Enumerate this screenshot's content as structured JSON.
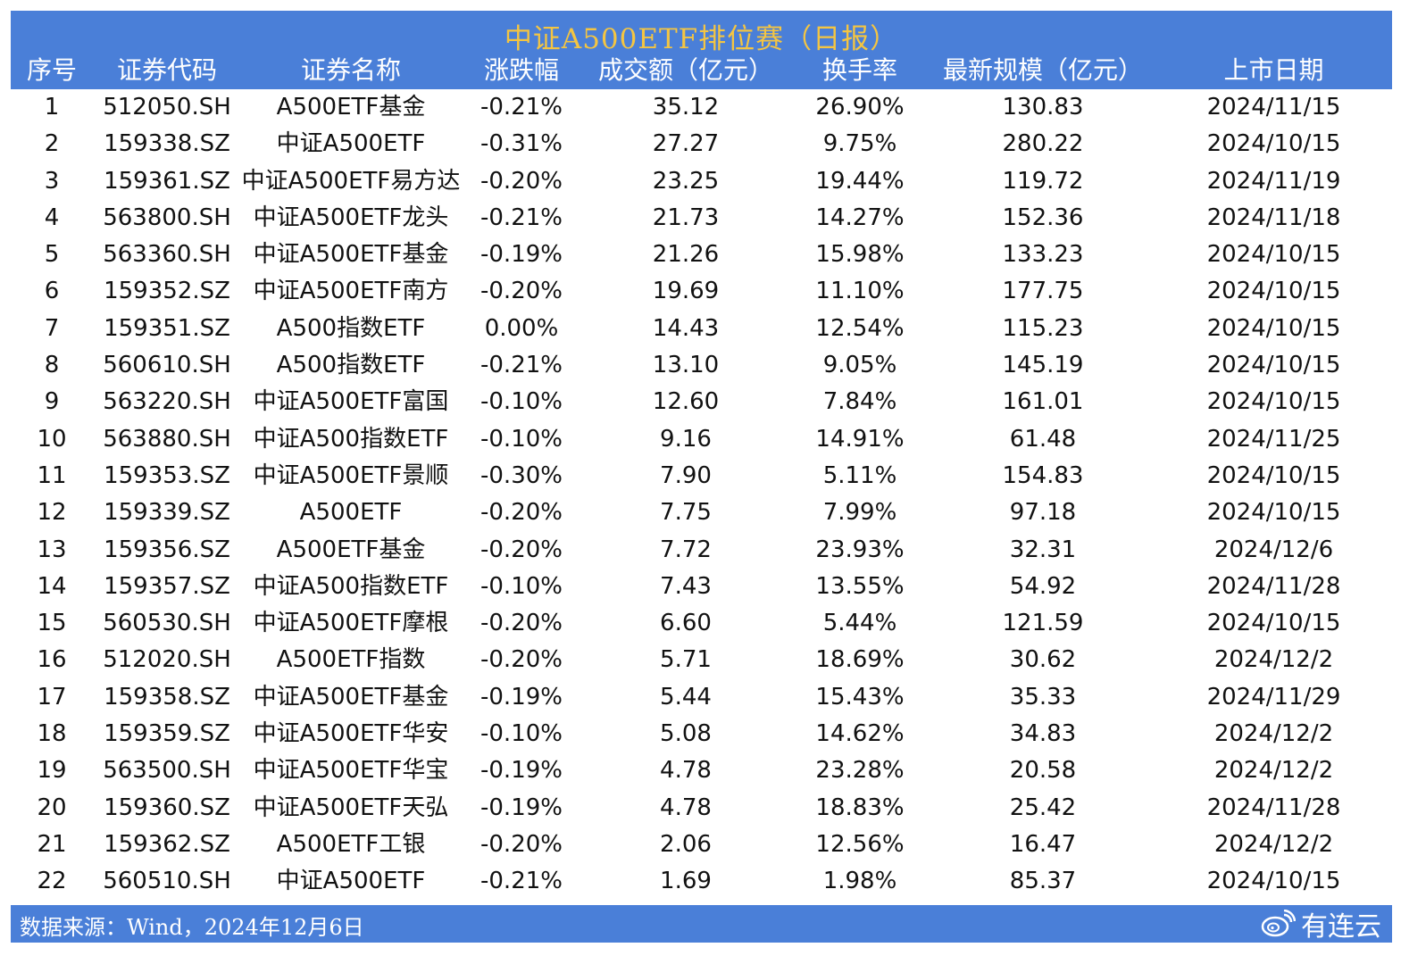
{
  "title": "中证A500ETF排位赛（日报）",
  "columns": [
    "序号",
    "证券代码",
    "证券名称",
    "涨跌幅",
    "成交额（亿元）",
    "换手率",
    "最新规模（亿元）",
    "上市日期"
  ],
  "rows": [
    [
      "1",
      "512050.SH",
      "A500ETF基金",
      "-0.21%",
      "35.12",
      "26.90%",
      "130.83",
      "2024/11/15"
    ],
    [
      "2",
      "159338.SZ",
      "中证A500ETF",
      "-0.31%",
      "27.27",
      "9.75%",
      "280.22",
      "2024/10/15"
    ],
    [
      "3",
      "159361.SZ",
      "中证A500ETF易方达",
      "-0.20%",
      "23.25",
      "19.44%",
      "119.72",
      "2024/11/19"
    ],
    [
      "4",
      "563800.SH",
      "中证A500ETF龙头",
      "-0.21%",
      "21.73",
      "14.27%",
      "152.36",
      "2024/11/18"
    ],
    [
      "5",
      "563360.SH",
      "中证A500ETF基金",
      "-0.19%",
      "21.26",
      "15.98%",
      "133.23",
      "2024/10/15"
    ],
    [
      "6",
      "159352.SZ",
      "中证A500ETF南方",
      "-0.20%",
      "19.69",
      "11.10%",
      "177.75",
      "2024/10/15"
    ],
    [
      "7",
      "159351.SZ",
      "A500指数ETF",
      "0.00%",
      "14.43",
      "12.54%",
      "115.23",
      "2024/10/15"
    ],
    [
      "8",
      "560610.SH",
      "A500指数ETF",
      "-0.21%",
      "13.10",
      "9.05%",
      "145.19",
      "2024/10/15"
    ],
    [
      "9",
      "563220.SH",
      "中证A500ETF富国",
      "-0.10%",
      "12.60",
      "7.84%",
      "161.01",
      "2024/10/15"
    ],
    [
      "10",
      "563880.SH",
      "中证A500指数ETF",
      "-0.10%",
      "9.16",
      "14.91%",
      "61.48",
      "2024/11/25"
    ],
    [
      "11",
      "159353.SZ",
      "中证A500ETF景顺",
      "-0.30%",
      "7.90",
      "5.11%",
      "154.83",
      "2024/10/15"
    ],
    [
      "12",
      "159339.SZ",
      "A500ETF",
      "-0.20%",
      "7.75",
      "7.99%",
      "97.18",
      "2024/10/15"
    ],
    [
      "13",
      "159356.SZ",
      "A500ETF基金",
      "-0.20%",
      "7.72",
      "23.93%",
      "32.31",
      "2024/12/6"
    ],
    [
      "14",
      "159357.SZ",
      "中证A500指数ETF",
      "-0.10%",
      "7.43",
      "13.55%",
      "54.92",
      "2024/11/28"
    ],
    [
      "15",
      "560530.SH",
      "中证A500ETF摩根",
      "-0.20%",
      "6.60",
      "5.44%",
      "121.59",
      "2024/10/15"
    ],
    [
      "16",
      "512020.SH",
      "A500ETF指数",
      "-0.20%",
      "5.71",
      "18.69%",
      "30.62",
      "2024/12/2"
    ],
    [
      "17",
      "159358.SZ",
      "中证A500ETF基金",
      "-0.19%",
      "5.44",
      "15.43%",
      "35.33",
      "2024/11/29"
    ],
    [
      "18",
      "159359.SZ",
      "中证A500ETF华安",
      "-0.10%",
      "5.08",
      "14.62%",
      "34.83",
      "2024/12/2"
    ],
    [
      "19",
      "563500.SH",
      "中证A500ETF华宝",
      "-0.19%",
      "4.78",
      "23.28%",
      "20.58",
      "2024/12/2"
    ],
    [
      "20",
      "159360.SZ",
      "中证A500ETF天弘",
      "-0.19%",
      "4.78",
      "18.83%",
      "25.42",
      "2024/11/28"
    ],
    [
      "21",
      "159362.SZ",
      "A500ETF工银",
      "-0.20%",
      "2.06",
      "12.56%",
      "16.47",
      "2024/12/2"
    ],
    [
      "22",
      "560510.SH",
      "中证A500ETF",
      "-0.21%",
      "1.69",
      "1.98%",
      "85.37",
      "2024/10/15"
    ]
  ],
  "source": "数据来源：Wind，2024年12月6日",
  "watermark": "有连云",
  "watermark_icon": "weibo-icon",
  "colors": {
    "header_bg": "#4a7fd8",
    "title_text": "#f4c542",
    "header_text": "#ffffff"
  }
}
